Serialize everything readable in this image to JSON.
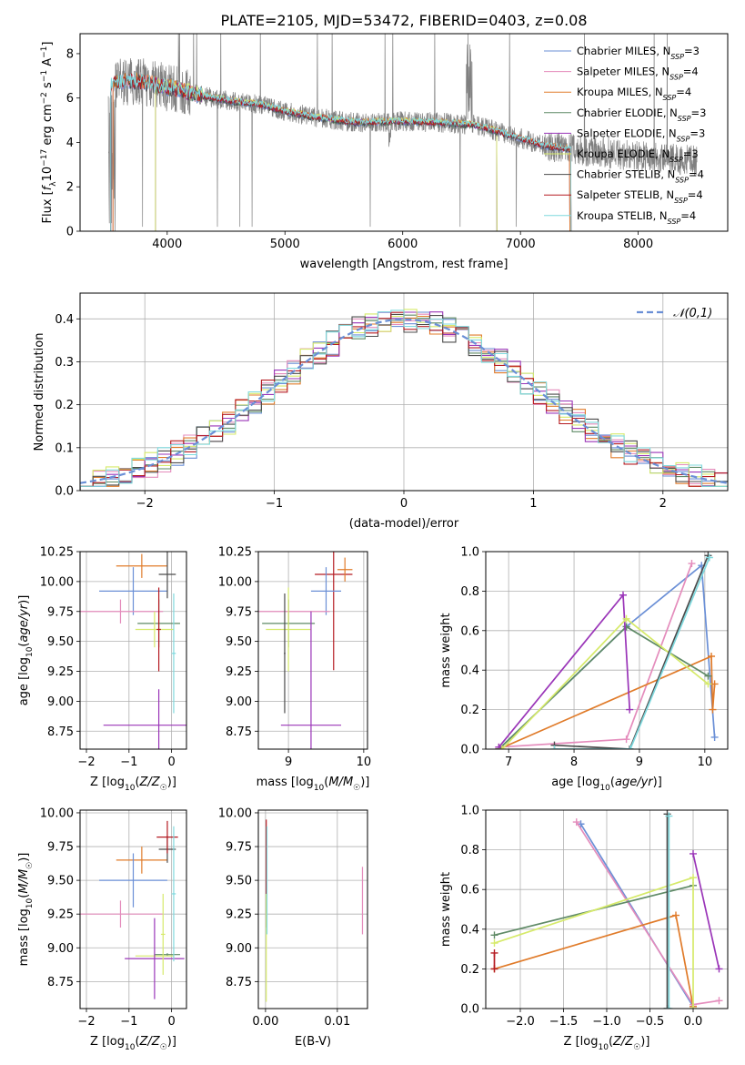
{
  "page": {
    "title": "PLATE=2105, MJD=53472, FIBERID=0403, z=0.08"
  },
  "colors": {
    "Chabrier MILES": "#6a8fd6",
    "Salpeter MILES": "#e48cbc",
    "Kroupa MILES": "#e07b2a",
    "Chabrier ELODIE": "#5f8a66",
    "Salpeter ELODIE": "#9a35b8",
    "Kroupa ELODIE": "#d6ea6a",
    "Chabrier STELIB": "#4c4c4c",
    "Salpeter STELIB": "#b51b22",
    "Kroupa STELIB": "#7fd9de",
    "data": "#808080",
    "grid": "#b0b0b0"
  },
  "chart_data": [
    {
      "id": "spectrum",
      "type": "line",
      "title": "PLATE=2105, MJD=53472, FIBERID=0403, z=0.08",
      "xlabel": "wavelength [Angstrom, rest frame]",
      "ylabel": "Flux [f_λ10^-17 erg cm^-2 s^-1 A^-1]",
      "xlim": [
        3260,
        8760
      ],
      "ylim": [
        0,
        8.9
      ],
      "xticks": [
        4000,
        5000,
        6000,
        7000,
        8000
      ],
      "yticks": [
        0,
        2,
        4,
        6,
        8
      ],
      "legend_position": "right",
      "legend": [
        {
          "name": "Chabrier MILES",
          "nssp": "3"
        },
        {
          "name": "Salpeter MILES",
          "nssp": "4"
        },
        {
          "name": "Kroupa MILES",
          "nssp": "4"
        },
        {
          "name": "Chabrier ELODIE",
          "nssp": "3"
        },
        {
          "name": "Salpeter ELODIE",
          "nssp": "3"
        },
        {
          "name": "Kroupa ELODIE",
          "nssp": "3"
        },
        {
          "name": "Chabrier STELIB",
          "nssp": "4"
        },
        {
          "name": "Salpeter STELIB",
          "nssp": "4"
        },
        {
          "name": "Kroupa STELIB",
          "nssp": "4"
        }
      ],
      "continuum": {
        "x": [
          3500,
          3700,
          4000,
          4300,
          4500,
          4800,
          5000,
          5300,
          5600,
          6000,
          6300,
          6600,
          6900,
          7200,
          7400
        ],
        "y": [
          6.6,
          6.8,
          6.5,
          6.1,
          5.9,
          5.7,
          5.4,
          5.1,
          4.9,
          4.95,
          4.9,
          4.8,
          4.35,
          3.85,
          3.7
        ]
      },
      "model_edges": {
        "MILES": [
          3540,
          7420
        ],
        "ELODIE": [
          3900,
          6800
        ],
        "STELIB": [
          3520,
          7430
        ]
      },
      "data_range": [
        3500,
        8500
      ]
    },
    {
      "id": "residuals",
      "type": "line",
      "xlabel": "(data-model)/error",
      "ylabel": "Normed distribution",
      "xlim": [
        -2.5,
        2.5
      ],
      "ylim": [
        0,
        0.46
      ],
      "xticks": [
        -2,
        -1,
        0,
        1,
        2
      ],
      "yticks": [
        0.0,
        0.1,
        0.2,
        0.3,
        0.4
      ],
      "reference": {
        "name": "𝒩(0,1)",
        "mu": 0,
        "sigma": 1
      },
      "bin_width": 0.1,
      "histogram_range": [
        -2.5,
        2.5
      ],
      "legend_position": "top-right"
    },
    {
      "id": "age_vs_Z",
      "type": "scatter",
      "xlabel": "Z [log10(Z/Z☉)]",
      "ylabel": "age [log10(age/yr)]",
      "xlim": [
        -2.15,
        0.35
      ],
      "ylim": [
        8.6,
        10.25
      ],
      "xticks": [
        -2,
        -1,
        0
      ],
      "yticks": [
        8.75,
        9.0,
        9.25,
        9.5,
        9.75,
        10.0,
        10.25
      ],
      "points": [
        {
          "model": "Kroupa MILES",
          "x": -0.7,
          "xerr": 0.6,
          "y": 10.13,
          "yerr": 0.1
        },
        {
          "model": "Chabrier MILES",
          "x": -0.9,
          "xerr": 0.8,
          "y": 9.92,
          "yerr": 0.2
        },
        {
          "model": "Salpeter MILES",
          "x": -1.2,
          "xerr": 1.0,
          "y": 9.75,
          "yerr": 0.1
        },
        {
          "model": "Chabrier ELODIE",
          "x": -0.3,
          "xerr": 0.5,
          "y": 9.65,
          "yerr": 0.2
        },
        {
          "model": "Kroupa ELODIE",
          "x": -0.4,
          "xerr": 0.45,
          "y": 9.6,
          "yerr": 0.15
        },
        {
          "model": "Salpeter ELODIE",
          "x": -0.3,
          "xerr": 1.3,
          "y": 8.8,
          "yerr": 0.3
        },
        {
          "model": "Chabrier STELIB",
          "x": -0.1,
          "xerr": 0.2,
          "y": 10.06,
          "yerr": 0.2
        },
        {
          "model": "Salpeter STELIB",
          "x": -0.3,
          "xerr": 0.05,
          "y": 9.6,
          "yerr": 0.35
        },
        {
          "model": "Kroupa STELIB",
          "x": 0.05,
          "xerr": 0.05,
          "y": 9.4,
          "yerr": 0.5
        }
      ]
    },
    {
      "id": "age_vs_mass",
      "type": "scatter",
      "xlabel": "mass [log10(M/M☉)]",
      "ylabel": "",
      "xlim": [
        8.6,
        10.05
      ],
      "ylim": [
        8.6,
        10.25
      ],
      "xticks": [
        9,
        10
      ],
      "yticks": [
        8.75,
        9.0,
        9.25,
        9.5,
        9.75,
        10.0,
        10.25
      ],
      "points": [
        {
          "model": "Salpeter STELIB",
          "x": 9.6,
          "xerr": 0.25,
          "y": 10.06,
          "yerr": 0.8
        },
        {
          "model": "Chabrier MILES",
          "x": 9.5,
          "xerr": 0.2,
          "y": 9.92,
          "yerr": 0.2
        },
        {
          "model": "Kroupa MILES",
          "x": 9.75,
          "xerr": 0.1,
          "y": 10.1,
          "yerr": 0.1
        },
        {
          "model": "Salpeter MILES",
          "x": 9.0,
          "xerr": 0.55,
          "y": 9.75,
          "yerr": 0.1
        },
        {
          "model": "Chabrier ELODIE",
          "x": 9.0,
          "xerr": 0.35,
          "y": 9.65,
          "yerr": 0.2
        },
        {
          "model": "Kroupa ELODIE",
          "x": 9.0,
          "xerr": 0.3,
          "y": 9.6,
          "yerr": 0.35
        },
        {
          "model": "Salpeter ELODIE",
          "x": 9.3,
          "xerr": 0.4,
          "y": 8.8,
          "yerr": 0.95
        },
        {
          "model": "Chabrier STELIB",
          "x": 8.95,
          "xerr": 0.01,
          "y": 9.4,
          "yerr": 0.5
        }
      ]
    },
    {
      "id": "weight_vs_age",
      "type": "line",
      "xlabel": "age  [log10(age/yr)]",
      "ylabel": "mass weight",
      "xlim": [
        6.65,
        10.35
      ],
      "ylim": [
        0,
        1.0
      ],
      "xticks": [
        7,
        8,
        9,
        10
      ],
      "yticks": [
        0.0,
        0.2,
        0.4,
        0.6,
        0.8,
        1.0
      ],
      "series": [
        {
          "model": "Chabrier MILES",
          "x": [
            6.85,
            8.8,
            9.95,
            10.15
          ],
          "y": [
            0.0,
            0.62,
            0.93,
            0.06
          ]
        },
        {
          "model": "Salpeter MILES",
          "x": [
            6.85,
            8.8,
            9.8
          ],
          "y": [
            0.01,
            0.05,
            0.94
          ]
        },
        {
          "model": "Kroupa MILES",
          "x": [
            6.85,
            10.1,
            10.12,
            10.15
          ],
          "y": [
            0.0,
            0.47,
            0.2,
            0.33
          ]
        },
        {
          "model": "Chabrier ELODIE",
          "x": [
            6.85,
            8.8,
            10.05
          ],
          "y": [
            0.0,
            0.62,
            0.37
          ]
        },
        {
          "model": "Salpeter ELODIE",
          "x": [
            6.85,
            8.75,
            8.85
          ],
          "y": [
            0.01,
            0.78,
            0.2
          ]
        },
        {
          "model": "Kroupa ELODIE",
          "x": [
            6.9,
            8.8,
            10.05
          ],
          "y": [
            0.0,
            0.66,
            0.33
          ]
        },
        {
          "model": "Chabrier STELIB",
          "x": [
            7.7,
            8.85,
            10.05
          ],
          "y": [
            0.02,
            0.0,
            0.98
          ]
        },
        {
          "model": "Kroupa STELIB",
          "x": [
            7.7,
            8.86,
            10.07
          ],
          "y": [
            0.0,
            0.0,
            0.97
          ]
        }
      ]
    },
    {
      "id": "mass_vs_Z",
      "type": "scatter",
      "xlabel": "Z [log10(Z/Z☉)]",
      "ylabel": "mass [log10(M/M☉)]",
      "xlim": [
        -2.15,
        0.35
      ],
      "ylim": [
        8.55,
        10.02
      ],
      "xticks": [
        -2,
        -1,
        0
      ],
      "yticks": [
        8.75,
        9.0,
        9.25,
        9.5,
        9.75,
        10.0
      ],
      "points": [
        {
          "model": "Kroupa MILES",
          "x": -0.7,
          "xerr": 0.6,
          "y": 9.65,
          "yerr": 0.1
        },
        {
          "model": "Chabrier MILES",
          "x": -0.9,
          "xerr": 0.8,
          "y": 9.5,
          "yerr": 0.2
        },
        {
          "model": "Salpeter MILES",
          "x": -1.2,
          "xerr": 1.0,
          "y": 9.25,
          "yerr": 0.1
        },
        {
          "model": "Chabrier ELODIE",
          "x": -0.1,
          "xerr": 0.3,
          "y": 8.95,
          "yerr": 0.01
        },
        {
          "model": "Kroupa ELODIE",
          "x": -0.4,
          "xerr": 0.45,
          "y": 8.94,
          "yerr": 0.01
        },
        {
          "model": "Salpeter ELODIE",
          "x": -0.4,
          "xerr": 0.7,
          "y": 8.92,
          "yerr": 0.3
        },
        {
          "model": "Chabrier STELIB",
          "x": -0.1,
          "xerr": 0.2,
          "y": 9.73,
          "yerr": 0.1
        },
        {
          "model": "Salpeter STELIB",
          "x": -0.1,
          "xerr": 0.25,
          "y": 9.82,
          "yerr": 0.12
        },
        {
          "model": "Kroupa STELIB",
          "x": 0.05,
          "xerr": 0.05,
          "y": 9.4,
          "yerr": 0.5
        },
        {
          "model": "Kroupa ELODIE",
          "x": -0.2,
          "xerr": 0.05,
          "y": 9.1,
          "yerr": 0.3
        }
      ]
    },
    {
      "id": "mass_vs_ebv",
      "type": "scatter",
      "xlabel": "E(B-V)",
      "ylabel": "",
      "xlim": [
        -0.001,
        0.0142
      ],
      "ylim": [
        8.55,
        10.02
      ],
      "xticks": [
        0.0,
        0.01
      ],
      "yticks": [
        8.75,
        9.0,
        9.25,
        9.5,
        9.75,
        10.0
      ],
      "points": [
        {
          "model": "Salpeter STELIB",
          "x": 0.0001,
          "xerr": 0,
          "y": 9.55,
          "yerr": 0.4
        },
        {
          "model": "Kroupa ELODIE",
          "x": 0.0001,
          "xerr": 0,
          "y": 9.0,
          "yerr": 0.4
        },
        {
          "model": "Kroupa STELIB",
          "x": 0.0002,
          "xerr": 0,
          "y": 9.5,
          "yerr": 0.4
        },
        {
          "model": "Salpeter MILES",
          "x": 0.0135,
          "xerr": 0,
          "y": 9.35,
          "yerr": 0.25
        }
      ]
    },
    {
      "id": "weight_vs_Z",
      "type": "line",
      "xlabel": "Z [log10(Z/Z☉)]",
      "ylabel": "mass weight",
      "xlim": [
        -2.4,
        0.4
      ],
      "ylim": [
        0,
        1.0
      ],
      "xticks": [
        -2.0,
        -1.5,
        -1.0,
        -0.5,
        0.0
      ],
      "yticks": [
        0.0,
        0.2,
        0.4,
        0.6,
        0.8,
        1.0
      ],
      "series": [
        {
          "model": "Chabrier MILES",
          "x": [
            -1.3,
            0.0
          ],
          "y": [
            0.93,
            0.01
          ]
        },
        {
          "model": "Salpeter MILES",
          "x": [
            -1.35,
            0.0,
            0.3
          ],
          "y": [
            0.94,
            0.02,
            0.04
          ]
        },
        {
          "model": "Kroupa MILES",
          "x": [
            -2.3,
            -0.2,
            0.0
          ],
          "y": [
            0.2,
            0.47,
            0.01
          ]
        },
        {
          "model": "Chabrier ELODIE",
          "x": [
            -2.3,
            0.0
          ],
          "y": [
            0.37,
            0.62
          ]
        },
        {
          "model": "Salpeter ELODIE",
          "x": [
            0.0,
            0.3
          ],
          "y": [
            0.78,
            0.2
          ]
        },
        {
          "model": "Kroupa ELODIE",
          "x": [
            -2.3,
            0.0,
            0.0
          ],
          "y": [
            0.33,
            0.66,
            0.0
          ]
        },
        {
          "model": "Chabrier STELIB",
          "x": [
            -0.3,
            -0.3
          ],
          "y": [
            0.0,
            0.98
          ]
        },
        {
          "model": "Kroupa STELIB",
          "x": [
            -0.28,
            -0.28
          ],
          "y": [
            0.0,
            0.97
          ]
        },
        {
          "model": "Salpeter STELIB",
          "x": [
            -2.3,
            -2.3
          ],
          "y": [
            0.2,
            0.28
          ]
        }
      ]
    }
  ]
}
